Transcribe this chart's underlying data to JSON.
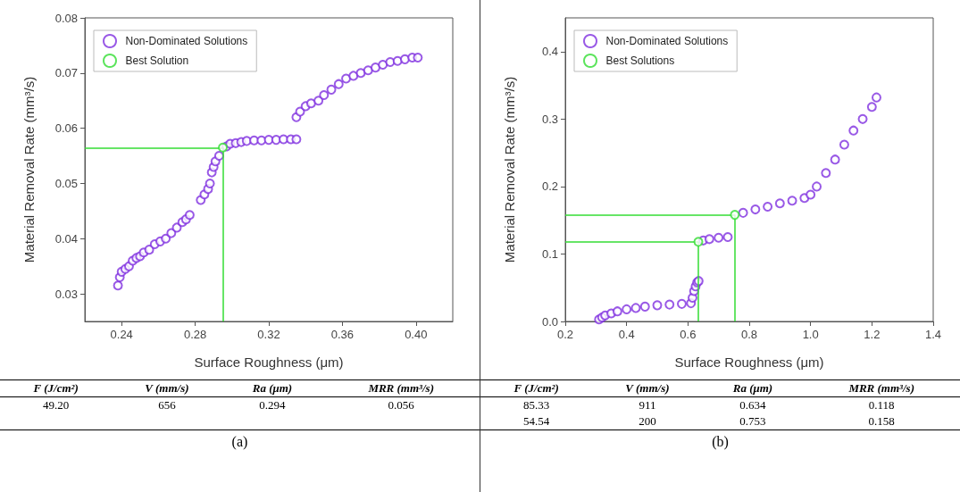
{
  "chart_data": [
    {
      "type": "scatter",
      "xlabel": "Surface Roughness (μm)",
      "ylabel": "Material Removal Rate (mm³/s)",
      "xlim": [
        0.22,
        0.42
      ],
      "xticks": [
        0.24,
        0.28,
        0.32,
        0.36,
        {
          "value": 0.4,
          "label": "0.40"
        }
      ],
      "ylim": [
        0.025,
        0.08
      ],
      "yticks": [
        0.03,
        0.04,
        0.05,
        0.06,
        0.07,
        0.08
      ],
      "grid": false,
      "legend": "top left",
      "marker": "circle",
      "series": [
        {
          "name": "Non-Dominated Solutions",
          "color": "#7f2fe0",
          "x": [
            0.238,
            0.239,
            0.24,
            0.242,
            0.244,
            0.246,
            0.248,
            0.25,
            0.252,
            0.255,
            0.258,
            0.261,
            0.264,
            0.267,
            0.27,
            0.273,
            0.275,
            0.277,
            0.283,
            0.285,
            0.287,
            0.288,
            0.289,
            0.29,
            0.291,
            0.293,
            0.297,
            0.299,
            0.302,
            0.305,
            0.308,
            0.312,
            0.316,
            0.32,
            0.324,
            0.328,
            0.332,
            0.335,
            0.335,
            0.337,
            0.34,
            0.343,
            0.347,
            0.35,
            0.354,
            0.358,
            0.362,
            0.366,
            0.37,
            0.374,
            0.378,
            0.382,
            0.386,
            0.39,
            0.394,
            0.398,
            0.401
          ],
          "values": [
            0.0315,
            0.033,
            0.034,
            0.0345,
            0.035,
            0.036,
            0.0365,
            0.0368,
            0.0375,
            0.038,
            0.039,
            0.0395,
            0.04,
            0.041,
            0.042,
            0.043,
            0.0435,
            0.0443,
            0.047,
            0.048,
            0.049,
            0.05,
            0.052,
            0.053,
            0.054,
            0.055,
            0.0567,
            0.0572,
            0.0573,
            0.0575,
            0.0577,
            0.0578,
            0.0578,
            0.0579,
            0.0579,
            0.058,
            0.058,
            0.058,
            0.062,
            0.063,
            0.064,
            0.0645,
            0.065,
            0.066,
            0.067,
            0.068,
            0.069,
            0.0695,
            0.07,
            0.0705,
            0.071,
            0.0715,
            0.072,
            0.0722,
            0.0725,
            0.0728,
            0.0728
          ]
        },
        {
          "name": "Best Solution",
          "color": "#33dd33",
          "x": [
            0.295
          ],
          "values": [
            0.0565
          ]
        }
      ],
      "ref_lines": [
        {
          "axis": "y",
          "value": 0.0565,
          "color": "#33dd33"
        },
        {
          "axis": "x",
          "value": 0.295,
          "color": "#33dd33"
        }
      ],
      "annotations": [
        "F (J/cm²)",
        "V (mm/s)",
        "Ra (μm)",
        "MRR (mm³/s)",
        "49.20",
        "656",
        "0.294",
        "0.056",
        "(a)"
      ]
    },
    {
      "type": "scatter",
      "xlabel": "Surface Roughness (μm)",
      "ylabel": "Material Removal Rate (mm³/s)",
      "xlim": [
        0.2,
        1.4
      ],
      "xticks": [
        0.2,
        0.4,
        0.6,
        0.8,
        {
          "value": 1,
          "label": "1.0"
        },
        1.2,
        1.4
      ],
      "ylim": [
        0,
        0.45
      ],
      "yticks": [
        {
          "value": 0,
          "label": "0.0"
        },
        0.1,
        0.2,
        0.3,
        0.4
      ],
      "grid": false,
      "legend": "top left",
      "marker": "circle",
      "series": [
        {
          "name": "Non-Dominated Solutions",
          "color": "#7f2fe0",
          "x": [
            0.31,
            0.32,
            0.33,
            0.35,
            0.37,
            0.4,
            0.43,
            0.46,
            0.5,
            0.54,
            0.58,
            0.61,
            0.615,
            0.62,
            0.625,
            0.63,
            0.635,
            0.65,
            0.67,
            0.7,
            0.73,
            0.78,
            0.82,
            0.86,
            0.9,
            0.94,
            0.98,
            1.0,
            1.02,
            1.05,
            1.08,
            1.11,
            1.14,
            1.17,
            1.2,
            1.215
          ],
          "values": [
            0.003,
            0.006,
            0.009,
            0.012,
            0.015,
            0.018,
            0.02,
            0.022,
            0.024,
            0.025,
            0.026,
            0.027,
            0.035,
            0.045,
            0.052,
            0.058,
            0.06,
            0.12,
            0.122,
            0.124,
            0.125,
            0.161,
            0.166,
            0.17,
            0.175,
            0.179,
            0.183,
            0.188,
            0.2,
            0.22,
            0.24,
            0.262,
            0.283,
            0.3,
            0.318,
            0.332
          ]
        },
        {
          "name": "Best Solutions",
          "color": "#33dd33",
          "x": [
            0.634,
            0.753
          ],
          "values": [
            0.118,
            0.158
          ]
        }
      ],
      "ref_lines": [
        {
          "axis": "y",
          "value": 0.118,
          "color": "#33dd33"
        },
        {
          "axis": "y",
          "value": 0.158,
          "color": "#33dd33"
        },
        {
          "axis": "x",
          "value": 0.634,
          "color": "#33dd33"
        },
        {
          "axis": "x",
          "value": 0.753,
          "color": "#33dd33"
        }
      ],
      "annotations": [
        "F (J/cm²)",
        "V (mm/s)",
        "Ra (μm)",
        "MRR (mm³/s)",
        "85.33",
        "911",
        "0.634",
        "0.118",
        "54.54",
        "200",
        "0.753",
        "0.158",
        "(b)"
      ]
    }
  ]
}
